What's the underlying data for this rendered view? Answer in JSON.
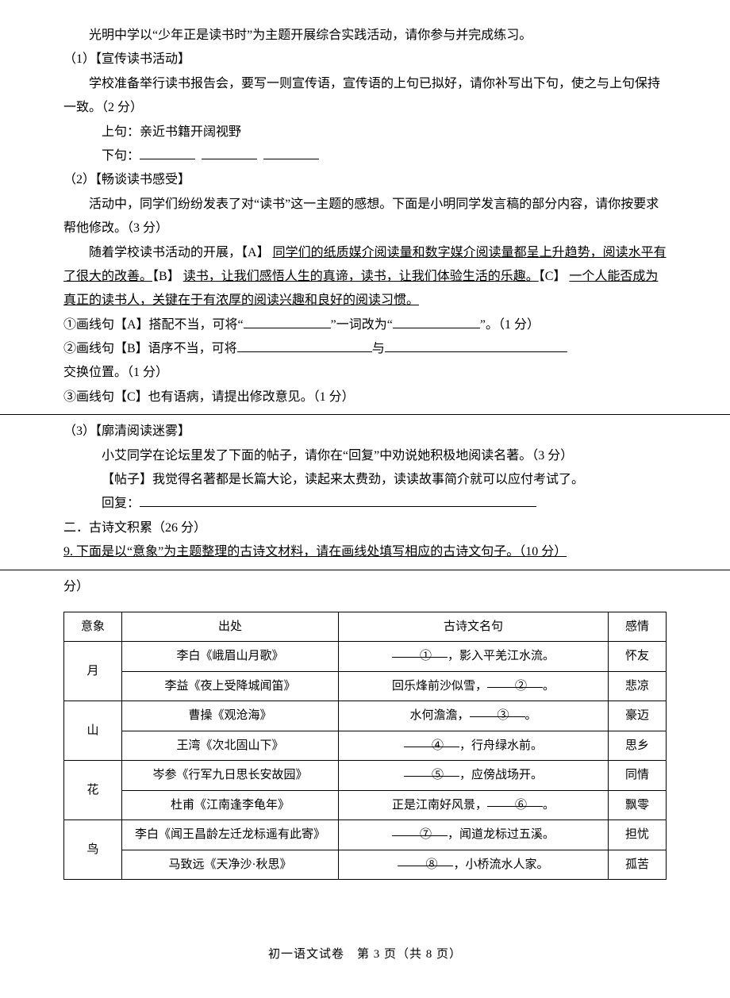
{
  "intro": "光明中学以“少年正是读书时”为主题开展综合实践活动，请你参与并完成练习。",
  "q1": {
    "num": "（1）",
    "title": "【宣传读书活动】",
    "body": "学校准备举行读书报告会，要写一则宣传语，宣传语的上句已拟好，请你补写出下句，使之与上句保持一致。（2 分）",
    "upper_label": "上句：",
    "upper_text": "亲近书籍开阔视野",
    "lower_label": "下句："
  },
  "q2": {
    "num": "（2）",
    "title": "【畅谈读书感受】",
    "body1": "活动中，同学们纷纷发表了对“读书”这一主题的感想。下面是小明同学发言稿的部分内容，请你按要求帮他修改。（3 分）",
    "para_lead": "随着学校读书活动的开展，",
    "A_label": "【A】",
    "A_text": "同学们的纸质媒介阅读量和数字媒介阅读量都呈上升趋势，阅读水平有了很大的改善。",
    "B_label": "【B】",
    "B_text": "读书，让我们感悟人生的真谛，读书，让我们体验生活的乐趣。",
    "C_label": "【C】",
    "C_text": "一个人能否成为真正的读书人，关键在于有浓厚的阅读兴趣和良好的阅读习惯。",
    "item1a": "①画线句【A】搭配不当，可将“",
    "item1b": "”一词改为“",
    "item1c": "”。（1 分）",
    "item2a": "②画线句【B】语序不当，可将",
    "item2b": "与",
    "item2c": "交换位置。（1 分）",
    "item3": "③画线句【C】也有语病，请提出修改意见。（1 分）"
  },
  "q3": {
    "num": "（3）",
    "title": "【廓清阅读迷雾】",
    "body": "小艾同学在论坛里发了下面的帖子，请你在“回复”中劝说她积极地阅读名著。（3 分）",
    "post_label": "【帖子】",
    "post_text": "我觉得名著都是长篇大论，读起来太费劲，读读故事简介就可以应付考试了。",
    "reply_label": "回复："
  },
  "section2": {
    "heading": "二．古诗文积累（26 分）",
    "q9": "9. 下面是以“意象”为主题整理的古诗文材料，请在画线处填写相应的古诗文句子。（10 分）"
  },
  "table": {
    "headers": [
      "意象",
      "出处",
      "古诗文名句",
      "感情"
    ],
    "rows": [
      {
        "img": "月",
        "src": "李白《峨眉山月歌》",
        "line_pre": "",
        "blank": "①",
        "line_post": "，影入平羌江水流。",
        "feel": "怀友"
      },
      {
        "src": "李益《夜上受降城闻笛》",
        "line_pre": "回乐烽前沙似雪，",
        "blank": "②",
        "line_post": "。",
        "feel": "悲凉"
      },
      {
        "img": "山",
        "src": "曹操《观沧海》",
        "line_pre": "水何澹澹，",
        "blank": "③",
        "line_post": "。",
        "feel": "豪迈"
      },
      {
        "src": "王湾《次北固山下》",
        "line_pre": "",
        "blank": "④",
        "line_post": "，行舟绿水前。",
        "feel": "思乡"
      },
      {
        "img": "花",
        "src": "岑参《行军九日思长安故园》",
        "line_pre": "",
        "blank": "⑤",
        "line_post": "，应傍战场开。",
        "feel": "同情"
      },
      {
        "src": "杜甫《江南逢李龟年》",
        "line_pre": "正是江南好风景，",
        "blank": "⑥",
        "line_post": "。",
        "feel": "飘零"
      },
      {
        "img": "鸟",
        "src": "李白《闻王昌龄左迁龙标遥有此寄》",
        "line_pre": "",
        "blank": "⑦",
        "line_post": "，闻道龙标过五溪。",
        "feel": "担忧"
      },
      {
        "src": "马致远《天净沙·秋思》",
        "line_pre": "",
        "blank": "⑧",
        "line_post": "，小桥流水人家。",
        "feel": "孤苦"
      }
    ]
  },
  "footer": "初一语文试卷　第 3 页（共 8 页）"
}
